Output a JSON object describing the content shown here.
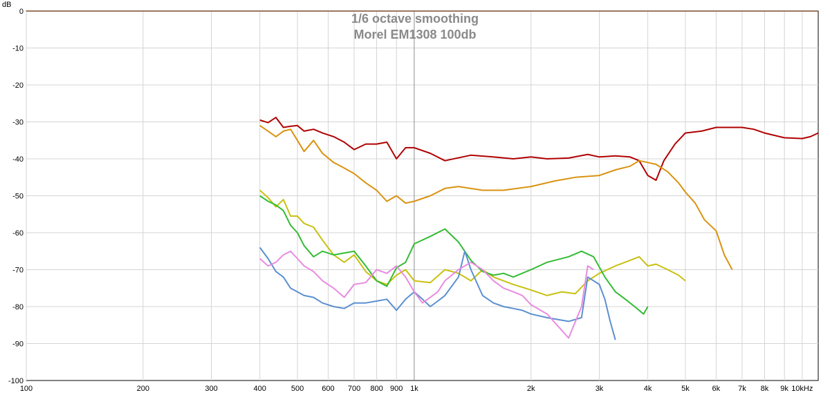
{
  "chart_data": {
    "type": "line",
    "title": "1/6 octave smoothing",
    "subtitle": "Morel EM1308 100db",
    "ylabel": "dB",
    "xlabel": "",
    "x_scale": "log",
    "xlim": [
      100,
      11000
    ],
    "ylim": [
      -100,
      0
    ],
    "grid": true,
    "y_ticks": [
      0,
      -10,
      -20,
      -30,
      -40,
      -50,
      -60,
      -70,
      -80,
      -90,
      -100
    ],
    "y_tick_labels": [
      "0",
      "-10",
      "-20",
      "-30",
      "-40",
      "-50",
      "-60",
      "-70",
      "-80",
      "-90",
      "-100"
    ],
    "x_ticks": [
      100,
      200,
      300,
      400,
      500,
      600,
      700,
      800,
      900,
      1000,
      2000,
      3000,
      4000,
      5000,
      6000,
      7000,
      8000,
      9000,
      10000
    ],
    "x_tick_labels": [
      "100",
      "200",
      "300",
      "400",
      "500",
      "600",
      "700",
      "800",
      "900",
      "1k",
      "2k",
      "3k",
      "4k",
      "5k",
      "6k",
      "7k",
      "8k",
      "9k",
      "10kHz"
    ],
    "series": [
      {
        "color": "#b00000",
        "x": [
          400,
          420,
          440,
          460,
          480,
          500,
          520,
          550,
          580,
          620,
          660,
          700,
          750,
          800,
          850,
          900,
          950,
          1000,
          1100,
          1200,
          1400,
          1600,
          1800,
          2000,
          2200,
          2500,
          2800,
          3000,
          3300,
          3600,
          3800,
          4000,
          4200,
          4400,
          4700,
          5000,
          5500,
          6000,
          6500,
          7000,
          7500,
          8000,
          9000,
          10000,
          10500,
          11000
        ],
        "values": [
          -29.5,
          -30.2,
          -28.8,
          -31.5,
          -31.2,
          -31.0,
          -32.5,
          -32.0,
          -33.0,
          -34.0,
          -35.5,
          -37.5,
          -36.0,
          -36.0,
          -35.5,
          -40.0,
          -37.0,
          -37.0,
          -38.5,
          -40.5,
          -39.0,
          -39.5,
          -40.0,
          -39.5,
          -40.0,
          -39.8,
          -38.8,
          -39.5,
          -39.2,
          -39.5,
          -40.5,
          -44.5,
          -45.8,
          -40.5,
          -36.0,
          -33.0,
          -32.5,
          -31.5,
          -31.5,
          -31.5,
          -32.0,
          -33.0,
          -34.3,
          -34.5,
          -34.0,
          -33.0
        ]
      },
      {
        "color": "#d9920f",
        "x": [
          400,
          420,
          440,
          460,
          480,
          500,
          520,
          550,
          580,
          620,
          660,
          700,
          750,
          800,
          850,
          900,
          950,
          1000,
          1100,
          1200,
          1300,
          1500,
          1700,
          2000,
          2300,
          2600,
          3000,
          3300,
          3600,
          3800,
          4000,
          4200,
          4500,
          4800,
          5000,
          5300,
          5600,
          6000,
          6300,
          6600
        ],
        "values": [
          -31.0,
          -32.5,
          -34.0,
          -32.5,
          -32.0,
          -35.0,
          -38.0,
          -35.0,
          -38.5,
          -41.0,
          -42.5,
          -44.0,
          -46.5,
          -48.5,
          -51.5,
          -50.0,
          -52.0,
          -51.5,
          -50.0,
          -48.0,
          -47.5,
          -48.5,
          -48.5,
          -47.5,
          -46.0,
          -45.0,
          -44.5,
          -43.0,
          -42.0,
          -40.5,
          -41.0,
          -41.5,
          -43.5,
          -46.5,
          -49.0,
          -52.0,
          -56.5,
          -59.5,
          -66.0,
          -70.0
        ]
      },
      {
        "color": "#c8c010",
        "x": [
          400,
          420,
          440,
          460,
          480,
          500,
          520,
          550,
          580,
          620,
          660,
          700,
          750,
          800,
          850,
          900,
          950,
          1000,
          1100,
          1200,
          1300,
          1400,
          1500,
          1600,
          1800,
          2000,
          2200,
          2400,
          2600,
          2800,
          3000,
          3300,
          3600,
          3800,
          4000,
          4200,
          4500,
          4800,
          5000
        ],
        "values": [
          -48.5,
          -50.5,
          -53.0,
          -51.0,
          -55.5,
          -55.5,
          -57.5,
          -58.5,
          -62.0,
          -66.0,
          -68.0,
          -66.0,
          -70.5,
          -73.0,
          -74.0,
          -71.5,
          -70.0,
          -73.0,
          -73.5,
          -70.0,
          -71.0,
          -73.0,
          -70.0,
          -72.0,
          -74.0,
          -75.5,
          -77.0,
          -76.0,
          -76.5,
          -73.0,
          -71.0,
          -69.0,
          -67.5,
          -66.5,
          -69.0,
          -68.5,
          -70.0,
          -71.5,
          -73.0
        ]
      },
      {
        "color": "#33bb33",
        "x": [
          400,
          420,
          440,
          460,
          480,
          500,
          520,
          550,
          580,
          620,
          660,
          700,
          750,
          800,
          850,
          900,
          950,
          1000,
          1100,
          1200,
          1300,
          1400,
          1500,
          1600,
          1700,
          1800,
          2000,
          2200,
          2500,
          2700,
          2900,
          3100,
          3300,
          3500,
          3700,
          3900,
          4000
        ],
        "values": [
          -50.0,
          -51.5,
          -52.5,
          -54.0,
          -58.0,
          -60.0,
          -63.5,
          -66.5,
          -65.0,
          -66.0,
          -65.5,
          -65.0,
          -69.0,
          -73.0,
          -74.5,
          -69.5,
          -68.0,
          -63.0,
          -61.0,
          -59.0,
          -62.5,
          -67.5,
          -70.5,
          -71.5,
          -71.0,
          -72.0,
          -70.0,
          -68.0,
          -66.5,
          -65.0,
          -66.5,
          -72.0,
          -76.0,
          -78.0,
          -80.0,
          -82.0,
          -80.0
        ]
      },
      {
        "color": "#5b8fd0",
        "x": [
          400,
          420,
          440,
          460,
          480,
          500,
          520,
          550,
          580,
          620,
          660,
          700,
          750,
          800,
          850,
          900,
          950,
          1000,
          1050,
          1100,
          1150,
          1200,
          1300,
          1350,
          1400,
          1500,
          1600,
          1700,
          1800,
          1900,
          2000,
          2200,
          2500,
          2700,
          2800,
          3000,
          3100,
          3200,
          3300
        ],
        "values": [
          -64.0,
          -67.0,
          -70.5,
          -72.0,
          -75.0,
          -76.0,
          -77.0,
          -77.5,
          -79.0,
          -80.0,
          -80.5,
          -79.0,
          -79.0,
          -78.5,
          -78.0,
          -81.0,
          -78.0,
          -76.0,
          -78.0,
          -80.0,
          -78.5,
          -77.0,
          -72.0,
          -65.0,
          -70.0,
          -77.0,
          -79.0,
          -80.0,
          -80.5,
          -81.0,
          -82.0,
          -83.0,
          -84.0,
          -83.0,
          -72.0,
          -74.0,
          -78.0,
          -84.0,
          -89.0
        ]
      },
      {
        "color": "#e88be0",
        "x": [
          400,
          420,
          440,
          460,
          480,
          500,
          520,
          550,
          580,
          620,
          660,
          700,
          750,
          800,
          850,
          900,
          950,
          1000,
          1050,
          1100,
          1150,
          1200,
          1300,
          1400,
          1500,
          1600,
          1700,
          1800,
          1900,
          2000,
          2200,
          2500,
          2700,
          2800,
          2900
        ],
        "values": [
          -67.0,
          -69.0,
          -68.0,
          -66.0,
          -65.0,
          -67.0,
          -69.0,
          -70.5,
          -73.0,
          -75.0,
          -77.5,
          -74.0,
          -73.5,
          -70.0,
          -71.0,
          -69.0,
          -72.0,
          -76.0,
          -79.0,
          -77.5,
          -76.0,
          -73.0,
          -70.0,
          -68.0,
          -70.0,
          -73.0,
          -75.0,
          -76.0,
          -77.0,
          -79.5,
          -82.0,
          -88.5,
          -80.0,
          -69.0,
          -70.0
        ]
      }
    ]
  }
}
